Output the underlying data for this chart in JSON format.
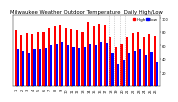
{
  "title": "Milwaukee Weather Outdoor Temperature  Daily High/Low",
  "highs": [
    82,
    75,
    78,
    76,
    80,
    79,
    85,
    88,
    90,
    86,
    84,
    82,
    80,
    95,
    88,
    92,
    90,
    72,
    58,
    62,
    72,
    78,
    80,
    72,
    76,
    74
  ],
  "lows": [
    55,
    52,
    48,
    54,
    55,
    56,
    60,
    62,
    65,
    60,
    58,
    56,
    58,
    62,
    60,
    65,
    63,
    48,
    32,
    38,
    48,
    52,
    55,
    45,
    50,
    35
  ],
  "xlabels": [
    "1",
    "2",
    "3",
    "4",
    "5",
    "6",
    "7",
    "8",
    "9",
    "10",
    "11",
    "12",
    "13",
    "14",
    "15",
    "16",
    "17",
    "18",
    "19",
    "20",
    "21",
    "22",
    "23",
    "24",
    "25",
    "26"
  ],
  "ylim": [
    0,
    105
  ],
  "yticks": [
    20,
    40,
    60,
    80,
    100
  ],
  "bar_width": 0.38,
  "high_color": "#ff0000",
  "low_color": "#0000ff",
  "background_color": "#ffffff",
  "title_fontsize": 3.8,
  "tick_fontsize": 2.5,
  "legend_fontsize": 3.0,
  "dashed_cols": [
    17,
    18,
    19,
    20
  ],
  "legend_high_label": "High",
  "legend_low_label": "Low"
}
